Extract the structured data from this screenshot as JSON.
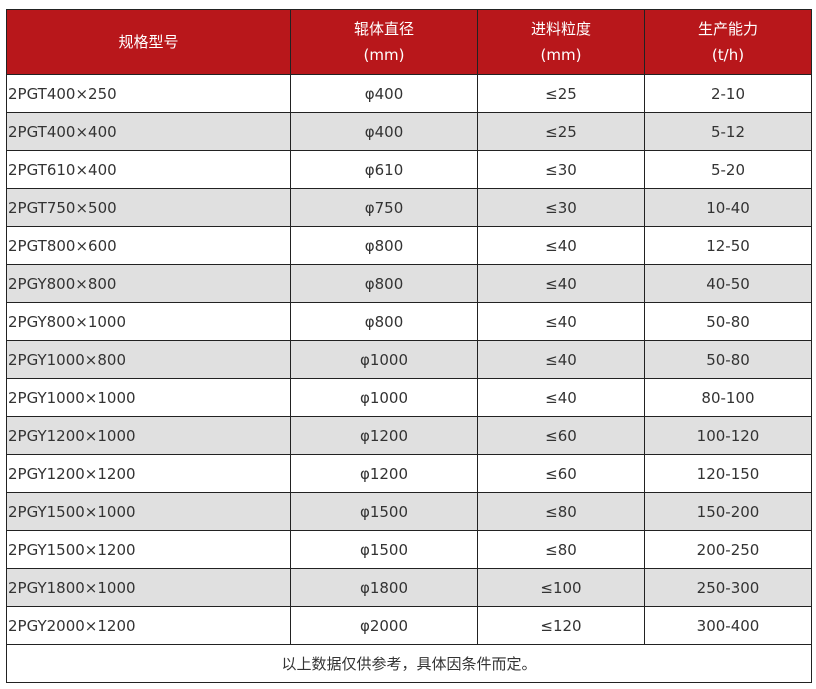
{
  "headers": [
    {
      "line1": "规格型号",
      "line2": ""
    },
    {
      "line1": "辊体直径",
      "line2": "(mm)"
    },
    {
      "line1": "进料粒度",
      "line2": "(mm)"
    },
    {
      "line1": "生产能力",
      "line2": "(t/h)"
    }
  ],
  "rows": [
    [
      "2PGT400×250",
      "φ400",
      "≤25",
      "2-10"
    ],
    [
      "2PGT400×400",
      "φ400",
      "≤25",
      "5-12"
    ],
    [
      "2PGT610×400",
      "φ610",
      "≤30",
      "5-20"
    ],
    [
      "2PGT750×500",
      "φ750",
      "≤30",
      "10-40"
    ],
    [
      "2PGT800×600",
      "φ800",
      "≤40",
      "12-50"
    ],
    [
      "2PGY800×800",
      "φ800",
      "≤40",
      "40-50"
    ],
    [
      "2PGY800×1000",
      "φ800",
      "≤40",
      "50-80"
    ],
    [
      "2PGY1000×800",
      "φ1000",
      "≤40",
      "50-80"
    ],
    [
      "2PGY1000×1000",
      "φ1000",
      "≤40",
      "80-100"
    ],
    [
      "2PGY1200×1000",
      "φ1200",
      "≤60",
      "100-120"
    ],
    [
      "2PGY1200×1200",
      "φ1200",
      "≤60",
      "120-150"
    ],
    [
      "2PGY1500×1000",
      "φ1500",
      "≤80",
      "150-200"
    ],
    [
      "2PGY1500×1200",
      "φ1500",
      "≤80",
      "200-250"
    ],
    [
      "2PGY1800×1000",
      "φ1800",
      "≤100",
      "250-300"
    ],
    [
      "2PGY2000×1200",
      "φ2000",
      "≤120",
      "300-400"
    ]
  ],
  "footer_note": "以上数据仅供参考，具体因条件而定。",
  "colors": {
    "header_bg": "#b8171b",
    "alt_row_bg": "#e0e0e0"
  }
}
